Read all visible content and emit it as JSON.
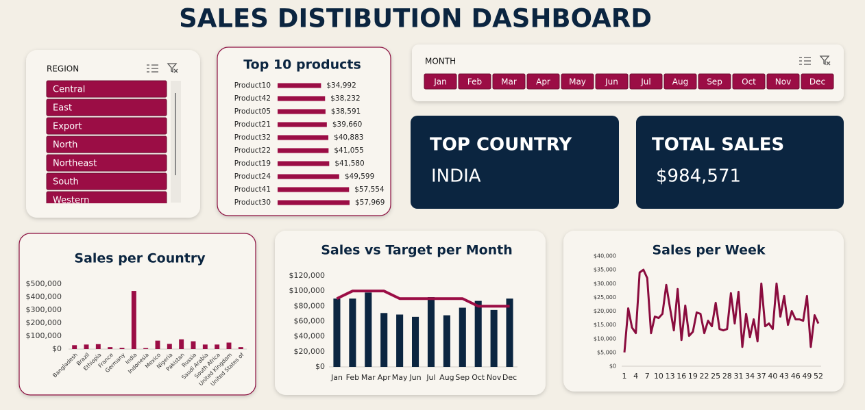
{
  "title": "SALES DISTIBUTION DASHBOARD",
  "region_slicer": {
    "label": "REGION",
    "items": [
      "Central",
      "East",
      "Export",
      "North",
      "Northeast",
      "South",
      "Western"
    ]
  },
  "month_slicer": {
    "label": "MONTH",
    "items": [
      "Jan",
      "Feb",
      "Mar",
      "Apr",
      "May",
      "Jun",
      "Jul",
      "Aug",
      "Sep",
      "Oct",
      "Nov",
      "Dec"
    ]
  },
  "kpis": [
    {
      "label": "TOP COUNTRY",
      "value": "INDIA"
    },
    {
      "label": "TOTAL SALES",
      "value": "$984,571"
    }
  ],
  "chart_data": [
    {
      "type": "hbar",
      "title": "Top 10 products",
      "color": "#9b0d45",
      "categories": [
        "Product10",
        "Product42",
        "Product05",
        "Product21",
        "Product32",
        "Product22",
        "Product19",
        "Product24",
        "Product41",
        "Product30"
      ],
      "values": [
        34992,
        38232,
        38591,
        39660,
        40883,
        41055,
        41580,
        49599,
        57554,
        57969
      ],
      "value_labels": [
        "$34,992",
        "$38,232",
        "$38,591",
        "$39,660",
        "$40,883",
        "$41,055",
        "$41,580",
        "$49,599",
        "$57,554",
        "$57,969"
      ]
    },
    {
      "type": "bar",
      "title": "Sales per Country",
      "color": "#9b0d45",
      "categories": [
        "Bangladesh",
        "Brazil",
        "Ethiopia",
        "France",
        "Germany",
        "India",
        "Indonesia",
        "Mexico",
        "Nigeria",
        "Pakistan",
        "Russia",
        "Saudi Arabia",
        "South Africa",
        "United Kingdom",
        "United States of"
      ],
      "values": [
        30000,
        35000,
        38000,
        15000,
        10000,
        447000,
        8000,
        65000,
        40000,
        75000,
        60000,
        35000,
        35000,
        50000,
        15000
      ],
      "ylim": [
        0,
        500000
      ],
      "yticks": [
        {
          "value": 0,
          "label": "$0"
        },
        {
          "value": 100000,
          "label": "$100,000"
        },
        {
          "value": 200000,
          "label": "$200,000"
        },
        {
          "value": 300000,
          "label": "$300,000"
        },
        {
          "value": 400000,
          "label": "$400,000"
        },
        {
          "value": 500000,
          "label": "$500,000"
        }
      ]
    },
    {
      "type": "combo",
      "title": "Sales vs Target per Month",
      "categories": [
        "Jan",
        "Feb",
        "Mar",
        "Apr",
        "May",
        "Jun",
        "Jul",
        "Aug",
        "Sep",
        "Oct",
        "Nov",
        "Dec"
      ],
      "series": [
        {
          "type": "bar",
          "color": "#0b2540",
          "values": [
            90000,
            90000,
            98000,
            71000,
            69000,
            66000,
            92000,
            68000,
            78000,
            87000,
            75000,
            90000
          ]
        },
        {
          "type": "line",
          "color": "#9b0d45",
          "values": [
            90000,
            100000,
            100000,
            100000,
            90000,
            90000,
            90000,
            90000,
            90000,
            80000,
            80000,
            80000
          ]
        }
      ],
      "ylim": [
        0,
        120000
      ],
      "yticks": [
        {
          "value": 0,
          "label": "$0"
        },
        {
          "value": 20000,
          "label": "$20,000"
        },
        {
          "value": 40000,
          "label": "$40,000"
        },
        {
          "value": 60000,
          "label": "$60,000"
        },
        {
          "value": 80000,
          "label": "$80,000"
        },
        {
          "value": 100000,
          "label": "$100,000"
        },
        {
          "value": 120000,
          "label": "$120,000"
        }
      ]
    },
    {
      "type": "line",
      "title": "Sales per Week",
      "color": "#8a0c3e",
      "x": [
        1,
        2,
        3,
        4,
        5,
        6,
        7,
        8,
        9,
        10,
        11,
        12,
        13,
        14,
        15,
        16,
        17,
        18,
        19,
        20,
        21,
        22,
        23,
        24,
        25,
        26,
        27,
        28,
        29,
        30,
        31,
        32,
        33,
        34,
        35,
        36,
        37,
        38,
        39,
        40,
        41,
        42,
        43,
        44,
        45,
        46,
        47,
        48,
        49,
        50,
        51,
        52
      ],
      "values": [
        5000,
        21000,
        14000,
        12000,
        34000,
        35000,
        32000,
        12000,
        18000,
        17500,
        19000,
        29500,
        21000,
        13000,
        28000,
        9500,
        22000,
        11000,
        12500,
        19500,
        19000,
        12000,
        16500,
        14500,
        23000,
        13500,
        13000,
        13500,
        26500,
        15500,
        27000,
        7000,
        19000,
        10500,
        17000,
        9000,
        30000,
        14500,
        15500,
        13500,
        30000,
        18000,
        25500,
        15000,
        20000,
        17000,
        17000,
        16500,
        25500,
        7000,
        18500,
        15500
      ],
      "xlim": [
        1,
        52
      ],
      "xticks": [
        1,
        4,
        7,
        10,
        13,
        16,
        19,
        22,
        25,
        28,
        31,
        34,
        37,
        40,
        43,
        46,
        49,
        52
      ],
      "ylim": [
        0,
        40000
      ],
      "yticks": [
        {
          "value": 0,
          "label": "$0"
        },
        {
          "value": 5000,
          "label": "$5,000"
        },
        {
          "value": 10000,
          "label": "$10,000"
        },
        {
          "value": 15000,
          "label": "$15,000"
        },
        {
          "value": 20000,
          "label": "$20,000"
        },
        {
          "value": 25000,
          "label": "$25,000"
        },
        {
          "value": 30000,
          "label": "$30,000"
        },
        {
          "value": 35000,
          "label": "$35,000"
        },
        {
          "value": 40000,
          "label": "$40,000"
        }
      ]
    }
  ]
}
